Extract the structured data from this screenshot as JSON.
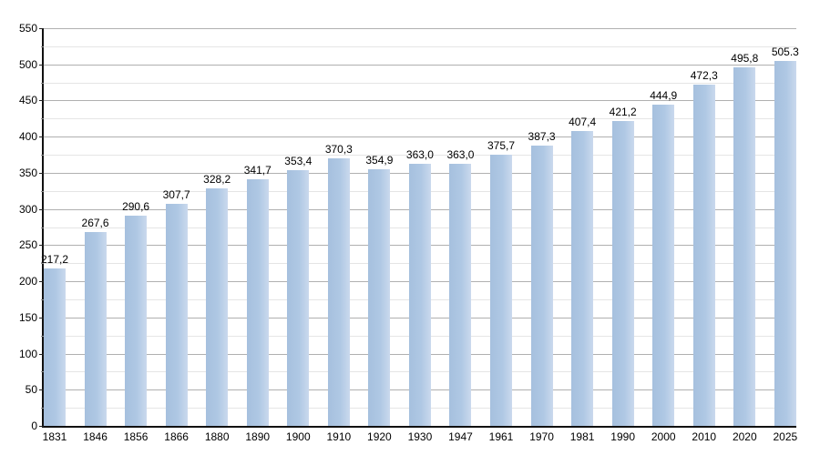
{
  "chart_data": {
    "type": "bar",
    "title": "",
    "xlabel": "",
    "ylabel": "",
    "categories": [
      "1831",
      "1846",
      "1856",
      "1866",
      "1880",
      "1890",
      "1900",
      "1910",
      "1920",
      "1930",
      "1947",
      "1961",
      "1970",
      "1981",
      "1990",
      "2000",
      "2010",
      "2020",
      "2025"
    ],
    "values": [
      217.2,
      267.6,
      290.6,
      307.7,
      328.2,
      341.7,
      353.4,
      370.3,
      354.9,
      363.0,
      363.0,
      375.7,
      387.3,
      407.4,
      421.2,
      444.9,
      472.3,
      495.8,
      505.3
    ],
    "value_labels": [
      "217,2",
      "267,6",
      "290,6",
      "307,7",
      "328,2",
      "341,7",
      "353,4",
      "370,3",
      "354,9",
      "363,0",
      "363,0",
      "375,7",
      "387,3",
      "407,4",
      "421,2",
      "444,9",
      "472,3",
      "495,8",
      "505.3"
    ],
    "ylim": [
      0,
      550
    ],
    "y_major_step": 50,
    "y_minor_step": 25,
    "y_tick_labels": [
      "0",
      "50",
      "100",
      "150",
      "200",
      "250",
      "300",
      "350",
      "400",
      "450",
      "500",
      "550"
    ],
    "grid": "horizontal major and minor gridlines",
    "legend_position": "none",
    "colors": {
      "bar_fill": "#afc8e4",
      "bar_fill_edge_highlight": "#cad9ed",
      "major_gridline": "#b0b0b0",
      "minor_gridline": "#e5e5e5",
      "axis_line": "#111111",
      "text": "#000000",
      "background": "#ffffff"
    }
  }
}
